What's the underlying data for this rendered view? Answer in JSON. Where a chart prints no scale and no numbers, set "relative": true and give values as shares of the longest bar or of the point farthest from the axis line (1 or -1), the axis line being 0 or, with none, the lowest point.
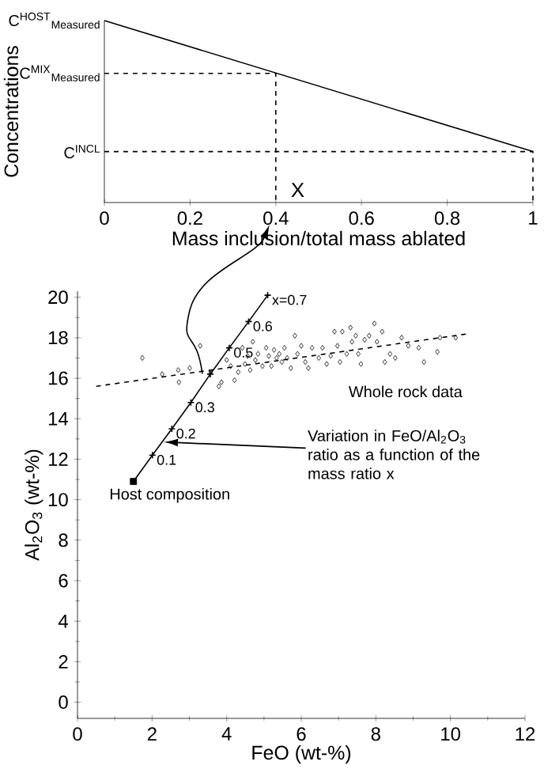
{
  "chart_data": [
    {
      "type": "line",
      "relative": true,
      "xlabel": "Mass inclusion/total mass ablated",
      "ylabel": "Concentrations",
      "xlim": [
        0,
        1
      ],
      "xticks": [
        0,
        0.2,
        0.4,
        0.6,
        0.8,
        1
      ],
      "grid": false,
      "series": [
        {
          "color": "#000000",
          "line_style": "solid",
          "x": [
            0,
            1
          ],
          "values": [
            1,
            0.28
          ]
        },
        {
          "color": "#000000",
          "line_style": "dashed",
          "x": [
            0,
            0.4,
            0.4
          ],
          "values": [
            0.71,
            0.71,
            0
          ]
        },
        {
          "color": "#000000",
          "line_style": "dashed",
          "x": [
            0,
            1,
            1
          ],
          "values": [
            0.28,
            0.28,
            0
          ]
        }
      ],
      "annotations": [
        {
          "text": "C$^{HOST}$$_{Measured}$",
          "x": 0,
          "y": 1
        },
        {
          "text": "C$^{MIX}$$_{Measured}$",
          "x": 0,
          "y": 0.71
        },
        {
          "text": "C$^{INCL}$",
          "x": 0,
          "y": 0.28
        },
        {
          "text": "X",
          "x": 0.4,
          "y": 0
        }
      ]
    },
    {
      "type": "scatter",
      "xlabel": "FeO (wt-%)",
      "ylabel": "Al$_{2}$O$_{3}$ (wt-%)",
      "xlim": [
        0,
        12
      ],
      "ylim": [
        -0.8,
        20.3
      ],
      "xticks": [
        0,
        2,
        4,
        6,
        8,
        10,
        12
      ],
      "yticks": [
        0,
        2,
        4,
        6,
        8,
        10,
        12,
        14,
        16,
        18,
        20
      ],
      "grid": false,
      "series": [
        {
          "type": "scatter",
          "marker": "diamond",
          "color": "#000000",
          "x": [
            1.74,
            2.27,
            2.7,
            2.72,
            3.01,
            3.29,
            3.57,
            3.79,
            3.86,
            4.0,
            4.11,
            4.21,
            4.31,
            4.42,
            4.49,
            4.56,
            4.63,
            4.7,
            4.77,
            4.84,
            4.96,
            5.06,
            5.13,
            5.2,
            5.27,
            5.34,
            5.41,
            5.48,
            5.55,
            5.62,
            5.72,
            5.83,
            5.9,
            6.0,
            6.11,
            6.19,
            6.29,
            6.47,
            6.57,
            6.68,
            6.79,
            6.89,
            6.97,
            7.04,
            7.1,
            7.22,
            7.32,
            7.36,
            7.46,
            7.53,
            7.6,
            7.7,
            7.82,
            7.96,
            8.03,
            8.17,
            8.24,
            8.38,
            8.52,
            8.69,
            8.87,
            9.15,
            9.29,
            9.65,
            9.72,
            10.14
          ],
          "values": [
            17.0,
            16.2,
            16.4,
            15.8,
            16.5,
            17.6,
            16.3,
            15.6,
            15.8,
            16.9,
            16.6,
            15.9,
            16.3,
            17.5,
            16.7,
            17.1,
            16.4,
            17.8,
            16.9,
            17.2,
            16.6,
            17.5,
            17.1,
            16.6,
            17.4,
            17.0,
            17.2,
            16.8,
            17.5,
            17.0,
            16.5,
            18.1,
            17.2,
            17.6,
            16.8,
            16.5,
            17.5,
            17.0,
            17.5,
            16.7,
            17.1,
            18.3,
            17.6,
            16.8,
            18.3,
            17.2,
            18.5,
            17.8,
            18.1,
            17.2,
            16.7,
            17.9,
            18.1,
            18.7,
            17.8,
            18.3,
            16.8,
            17.2,
            17.0,
            18.0,
            17.6,
            17.5,
            16.8,
            17.3,
            18.0,
            18.0
          ]
        },
        {
          "type": "line",
          "line_style": "dashed",
          "marker": "none",
          "color": "#000000",
          "x": [
            0.5,
            10.5
          ],
          "values": [
            15.6,
            18.2
          ]
        },
        {
          "type": "line",
          "line_style": "solid",
          "marker": "cross",
          "color": "#000000",
          "x": [
            1.5,
            2.01,
            2.53,
            3.04,
            3.56,
            4.07,
            4.59,
            5.1
          ],
          "values": [
            10.9,
            12.2,
            13.5,
            14.8,
            16.2,
            17.5,
            18.8,
            20.1
          ]
        },
        {
          "type": "scatter",
          "marker": "square",
          "color": "#000000",
          "x": [
            1.5
          ],
          "values": [
            10.9
          ]
        }
      ],
      "annotations": [
        {
          "text": "0.1",
          "x": 2.01,
          "y": 12.2
        },
        {
          "text": "0.2",
          "x": 2.53,
          "y": 13.5
        },
        {
          "text": "0.3",
          "x": 3.04,
          "y": 14.8
        },
        {
          "text": "0.5",
          "x": 4.07,
          "y": 17.5
        },
        {
          "text": "0.6",
          "x": 4.59,
          "y": 18.8
        },
        {
          "text": "x=0.7",
          "x": 5.1,
          "y": 20.1
        },
        {
          "text": "Host composition",
          "x": 1.5,
          "y": 10.9
        },
        "Whole rock data",
        "Variation in FeO/Al$_{2}$O$_{3}$ ratio as a function of the mass ratio x"
      ]
    }
  ]
}
